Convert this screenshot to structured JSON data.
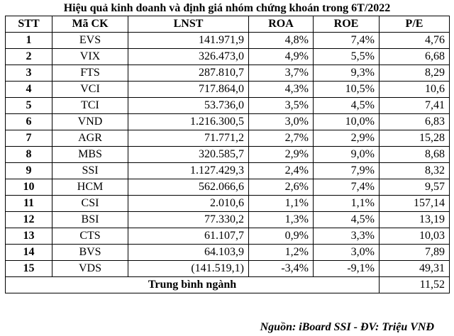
{
  "title": "Hiệu quả kinh doanh và định giá nhóm chứng khoán trong 6T/2022",
  "headers": [
    "STT",
    "Mã CK",
    "LNST",
    "ROA",
    "ROE",
    "P/E"
  ],
  "rows": [
    [
      "1",
      "EVS",
      "141.971,9",
      "4,8%",
      "7,4%",
      "4,76"
    ],
    [
      "2",
      "VIX",
      "326.473,0",
      "4,9%",
      "5,5%",
      "6,68"
    ],
    [
      "3",
      "FTS",
      "287.810,7",
      "3,7%",
      "9,3%",
      "8,29"
    ],
    [
      "4",
      "VCI",
      "717.864,0",
      "4,3%",
      "10,5%",
      "10,6"
    ],
    [
      "5",
      "TCI",
      "53.736,0",
      "3,5%",
      "4,5%",
      "7,41"
    ],
    [
      "6",
      "VND",
      "1.216.300,5",
      "3,0%",
      "10,0%",
      "6,83"
    ],
    [
      "7",
      "AGR",
      "71.771,2",
      "2,7%",
      "2,9%",
      "15,28"
    ],
    [
      "8",
      "MBS",
      "320.585,7",
      "2,9%",
      "9,0%",
      "8,68"
    ],
    [
      "9",
      "SSI",
      "1.127.429,3",
      "2,4%",
      "7,9%",
      "8,32"
    ],
    [
      "10",
      "HCM",
      "562.066,6",
      "2,6%",
      "7,4%",
      "9,57"
    ],
    [
      "11",
      "CSI",
      "2.010,6",
      "1,1%",
      "1,1%",
      "157,14"
    ],
    [
      "12",
      "BSI",
      "77.330,2",
      "1,3%",
      "4,5%",
      "13,19"
    ],
    [
      "13",
      "CTS",
      "61.107,7",
      "0,9%",
      "3,3%",
      "10,03"
    ],
    [
      "14",
      "BVS",
      "64.103,9",
      "1,2%",
      "3,0%",
      "7,89"
    ],
    [
      "15",
      "VDS",
      "(141.519,1)",
      "-3,4%",
      "-9,1%",
      "49,31"
    ]
  ],
  "average": {
    "label": "Trung bình ngành",
    "pe": "11,52"
  },
  "source": "Nguồn: iBoard SSI - ĐV: Triệu VNĐ"
}
